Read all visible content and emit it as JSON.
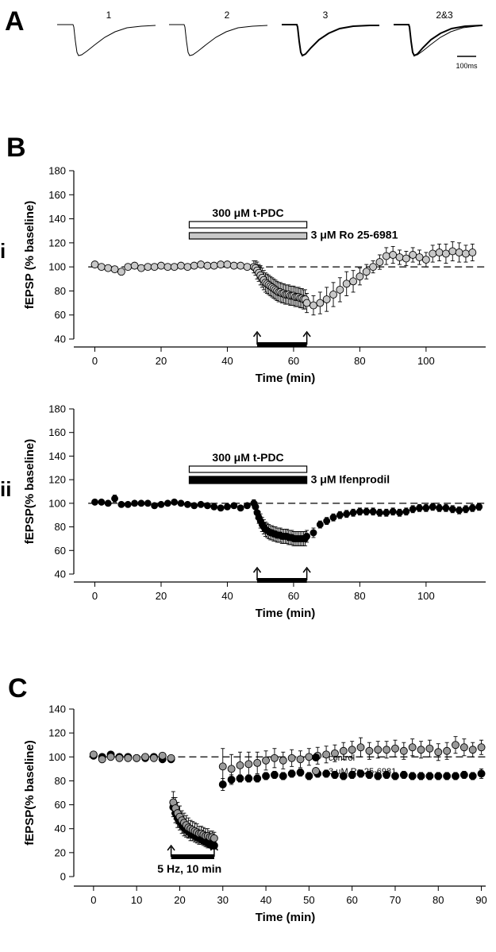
{
  "panel_letters": {
    "a": "A",
    "b": "B",
    "c": "C"
  },
  "panel_roman": {
    "i": "i",
    "ii": "ii"
  },
  "traces": {
    "labels": [
      "1",
      "2",
      "3",
      "2&3"
    ],
    "scale_label": "100ms"
  },
  "colors": {
    "black": "#000000",
    "grey": "#c8c8c8",
    "darkgrey": "#9a9a9a",
    "white": "#ffffff"
  },
  "chart_data": [
    {
      "id": "Bi",
      "type": "scatter",
      "xlabel": "Time (min)",
      "ylabel": "fEPSP (% baseline)",
      "xlim": [
        -3,
        118
      ],
      "ylim": [
        40,
        180
      ],
      "xticks": [
        "0",
        "20",
        "40",
        "60",
        "80",
        "100"
      ],
      "yticks": [
        "40",
        "60",
        "80",
        "100",
        "120",
        "140",
        "160",
        "180"
      ],
      "baseline": 100,
      "bars": [
        {
          "label": "300 μM t-PDC",
          "start": 28.5,
          "end": 64,
          "fill": "white",
          "label_side": "above"
        },
        {
          "label": "3 μM Ro 25-6981",
          "start": 28.5,
          "end": 64,
          "fill": "grey",
          "label_side": "right"
        }
      ],
      "stim_bar": {
        "start": 49,
        "end": 64
      },
      "series": [
        {
          "fill": "grey",
          "x": [
            0,
            2,
            4,
            6,
            8,
            10,
            12,
            14,
            16,
            18,
            20,
            22,
            24,
            26,
            28,
            30,
            32,
            34,
            36,
            38,
            40,
            42,
            44,
            46,
            48,
            48.5,
            49,
            49.5,
            50,
            50.5,
            51,
            51.5,
            52,
            52.5,
            53,
            53.5,
            54,
            54.5,
            55,
            55.5,
            56,
            56.5,
            57,
            57.5,
            58,
            58.5,
            59,
            59.5,
            60,
            60.5,
            61,
            61.5,
            62,
            62.5,
            63,
            63.5,
            64,
            66,
            68,
            70,
            72,
            74,
            76,
            78,
            80,
            82,
            84,
            86,
            88,
            90,
            92,
            94,
            96,
            98,
            100,
            102,
            104,
            106,
            108,
            110,
            112,
            114
          ],
          "y": [
            102,
            100,
            99,
            98,
            96,
            100,
            101,
            99,
            100,
            100,
            101,
            100,
            100,
            101,
            100,
            101,
            102,
            101,
            101,
            102,
            102,
            101,
            101,
            100,
            100,
            99,
            97,
            95,
            93,
            91,
            89,
            87,
            86,
            85,
            84,
            83,
            82,
            81,
            80,
            79,
            79,
            78,
            78,
            77,
            77,
            77,
            76,
            76,
            76,
            75,
            75,
            75,
            74,
            74,
            73,
            73,
            70,
            68,
            70,
            73,
            77,
            81,
            86,
            88,
            92,
            96,
            100,
            104,
            109,
            110,
            108,
            107,
            110,
            108,
            106,
            111,
            112,
            111,
            113,
            112,
            111,
            112
          ],
          "err": [
            2,
            2,
            2,
            2,
            2,
            2,
            2,
            2,
            2,
            2,
            2,
            2,
            2,
            2,
            2,
            2,
            2,
            2,
            2,
            2,
            2,
            2,
            2,
            2,
            5,
            6,
            7,
            7,
            8,
            8,
            8,
            8,
            8,
            8,
            8,
            8,
            8,
            8,
            8,
            8,
            8,
            8,
            8,
            8,
            8,
            8,
            8,
            8,
            8,
            8,
            8,
            8,
            8,
            8,
            8,
            8,
            8,
            8,
            9,
            10,
            10,
            10,
            10,
            9,
            7,
            6,
            5,
            6,
            7,
            7,
            6,
            6,
            6,
            6,
            6,
            7,
            7,
            8,
            8,
            8,
            7,
            7
          ]
        }
      ]
    },
    {
      "id": "Bii",
      "type": "scatter",
      "xlabel": "Time (min)",
      "ylabel": "fEPSP(% baseline)",
      "xlim": [
        -3,
        118
      ],
      "ylim": [
        40,
        180
      ],
      "xticks": [
        "0",
        "20",
        "40",
        "60",
        "80",
        "100"
      ],
      "yticks": [
        "40",
        "60",
        "80",
        "100",
        "120",
        "140",
        "160",
        "180"
      ],
      "baseline": 100,
      "bars": [
        {
          "label": "300 μM t-PDC",
          "start": 28.5,
          "end": 64,
          "fill": "white",
          "label_side": "above"
        },
        {
          "label": "3 μM Ifenprodil",
          "start": 28.5,
          "end": 64,
          "fill": "black",
          "label_side": "right"
        }
      ],
      "stim_bar": {
        "start": 49,
        "end": 64
      },
      "series": [
        {
          "fill": "black",
          "x": [
            0,
            2,
            4,
            6,
            8,
            10,
            12,
            14,
            16,
            18,
            20,
            22,
            24,
            26,
            28,
            30,
            32,
            34,
            36,
            38,
            40,
            42,
            44,
            46,
            48,
            48.5,
            49,
            49.5,
            50,
            50.5,
            51,
            51.5,
            52,
            52.5,
            53,
            53.5,
            54,
            54.5,
            55,
            55.5,
            56,
            56.5,
            57,
            57.5,
            58,
            58.5,
            59,
            59.5,
            60,
            60.5,
            61,
            61.5,
            62,
            62.5,
            63,
            63.5,
            64,
            66,
            68,
            70,
            72,
            74,
            76,
            78,
            80,
            82,
            84,
            86,
            88,
            90,
            92,
            94,
            96,
            98,
            100,
            102,
            104,
            106,
            108,
            110,
            112,
            114,
            116
          ],
          "y": [
            101,
            101,
            100,
            104,
            99,
            99,
            100,
            100,
            100,
            98,
            99,
            100,
            101,
            100,
            99,
            98,
            99,
            98,
            97,
            96,
            97,
            98,
            96,
            98,
            100,
            97,
            92,
            88,
            85,
            82,
            80,
            78,
            77,
            76,
            75,
            75,
            74,
            74,
            73,
            73,
            73,
            72,
            72,
            72,
            72,
            71,
            71,
            71,
            70,
            70,
            70,
            70,
            70,
            70,
            70,
            70,
            72,
            75,
            82,
            85,
            88,
            90,
            91,
            92,
            93,
            93,
            93,
            92,
            92,
            93,
            92,
            93,
            95,
            96,
            96,
            97,
            96,
            96,
            95,
            94,
            95,
            96,
            97
          ],
          "err": [
            2,
            2,
            2,
            3,
            2,
            2,
            2,
            2,
            2,
            2,
            2,
            2,
            2,
            2,
            2,
            2,
            2,
            2,
            2,
            2,
            2,
            2,
            2,
            2,
            3,
            4,
            5,
            5,
            6,
            6,
            6,
            6,
            6,
            6,
            6,
            6,
            6,
            6,
            6,
            6,
            6,
            6,
            6,
            6,
            6,
            6,
            6,
            6,
            6,
            6,
            6,
            6,
            6,
            6,
            6,
            6,
            5,
            4,
            3,
            3,
            3,
            3,
            3,
            3,
            3,
            3,
            3,
            3,
            3,
            3,
            3,
            3,
            3,
            3,
            3,
            3,
            3,
            3,
            3,
            3,
            3,
            3,
            3
          ]
        }
      ]
    },
    {
      "id": "C",
      "type": "scatter",
      "xlabel": "Time (min)",
      "ylabel": "fEPSP(% baseline)",
      "xlim": [
        -2,
        91
      ],
      "ylim": [
        0,
        140
      ],
      "xticks": [
        "0",
        "10",
        "20",
        "30",
        "40",
        "50",
        "60",
        "70",
        "80",
        "90"
      ],
      "yticks": [
        "0",
        "20",
        "40",
        "60",
        "80",
        "100",
        "120",
        "140"
      ],
      "baseline": 100,
      "stim_bar": {
        "start": 18,
        "end": 28,
        "label": "5 Hz, 10 min"
      },
      "legend": {
        "position": "center-right"
      },
      "series": [
        {
          "name": "control",
          "fill": "black",
          "x": [
            0,
            2,
            4,
            6,
            8,
            10,
            12,
            14,
            16,
            18,
            18.5,
            19,
            19.5,
            20,
            20.5,
            21,
            21.5,
            22,
            22.5,
            23,
            23.5,
            24,
            24.5,
            25,
            25.5,
            26,
            26.5,
            27,
            27.5,
            28,
            30,
            32,
            34,
            36,
            38,
            40,
            42,
            44,
            46,
            48,
            50,
            52,
            54,
            56,
            58,
            60,
            62,
            64,
            66,
            68,
            70,
            72,
            74,
            76,
            78,
            80,
            82,
            84,
            86,
            88,
            90
          ],
          "y": [
            101,
            100,
            102,
            100,
            100,
            99,
            99,
            100,
            98,
            98,
            58,
            53,
            49,
            46,
            43,
            41,
            39,
            38,
            36,
            35,
            34,
            33,
            32,
            31,
            30,
            29,
            28,
            27,
            26,
            26,
            77,
            81,
            82,
            82,
            82,
            84,
            85,
            84,
            86,
            87,
            84,
            86,
            86,
            85,
            84,
            85,
            86,
            85,
            84,
            85,
            84,
            85,
            84,
            84,
            84,
            84,
            84,
            84,
            85,
            84,
            86
          ],
          "err": [
            2,
            2,
            2,
            2,
            2,
            2,
            2,
            2,
            2,
            2,
            8,
            8,
            8,
            7,
            7,
            7,
            6,
            6,
            6,
            5,
            5,
            5,
            5,
            4,
            4,
            4,
            4,
            3,
            3,
            3,
            5,
            4,
            3,
            3,
            3,
            3,
            3,
            3,
            3,
            3,
            3,
            3,
            3,
            3,
            3,
            3,
            3,
            3,
            3,
            3,
            3,
            3,
            3,
            3,
            3,
            3,
            3,
            3,
            3,
            3,
            4
          ]
        },
        {
          "name": "3 μM Ro 25-6981",
          "fill": "darkgrey",
          "x": [
            0,
            2,
            4,
            6,
            8,
            10,
            12,
            14,
            16,
            18,
            18.5,
            19,
            19.5,
            20,
            20.5,
            21,
            21.5,
            22,
            22.5,
            23,
            23.5,
            24,
            24.5,
            25,
            25.5,
            26,
            26.5,
            27,
            27.5,
            28,
            30,
            32,
            34,
            36,
            38,
            40,
            42,
            44,
            46,
            48,
            50,
            52,
            54,
            56,
            58,
            60,
            62,
            64,
            66,
            68,
            70,
            72,
            74,
            76,
            78,
            80,
            82,
            84,
            86,
            88,
            90
          ],
          "y": [
            102,
            98,
            100,
            99,
            99,
            99,
            100,
            99,
            101,
            99,
            62,
            57,
            53,
            50,
            47,
            45,
            43,
            41,
            40,
            39,
            38,
            37,
            36,
            36,
            35,
            34,
            34,
            33,
            33,
            32,
            92,
            90,
            93,
            94,
            95,
            97,
            99,
            97,
            99,
            98,
            100,
            101,
            102,
            103,
            105,
            106,
            108,
            105,
            106,
            106,
            107,
            105,
            108,
            106,
            107,
            104,
            105,
            110,
            108,
            106,
            108
          ],
          "err": [
            2,
            2,
            2,
            2,
            2,
            2,
            2,
            2,
            2,
            2,
            9,
            9,
            9,
            9,
            8,
            8,
            8,
            8,
            7,
            7,
            7,
            7,
            6,
            6,
            6,
            6,
            6,
            5,
            5,
            5,
            15,
            12,
            11,
            10,
            9,
            8,
            8,
            7,
            7,
            7,
            7,
            7,
            7,
            7,
            7,
            7,
            8,
            7,
            7,
            7,
            7,
            7,
            7,
            7,
            7,
            7,
            7,
            7,
            7,
            6,
            6
          ]
        }
      ]
    }
  ]
}
